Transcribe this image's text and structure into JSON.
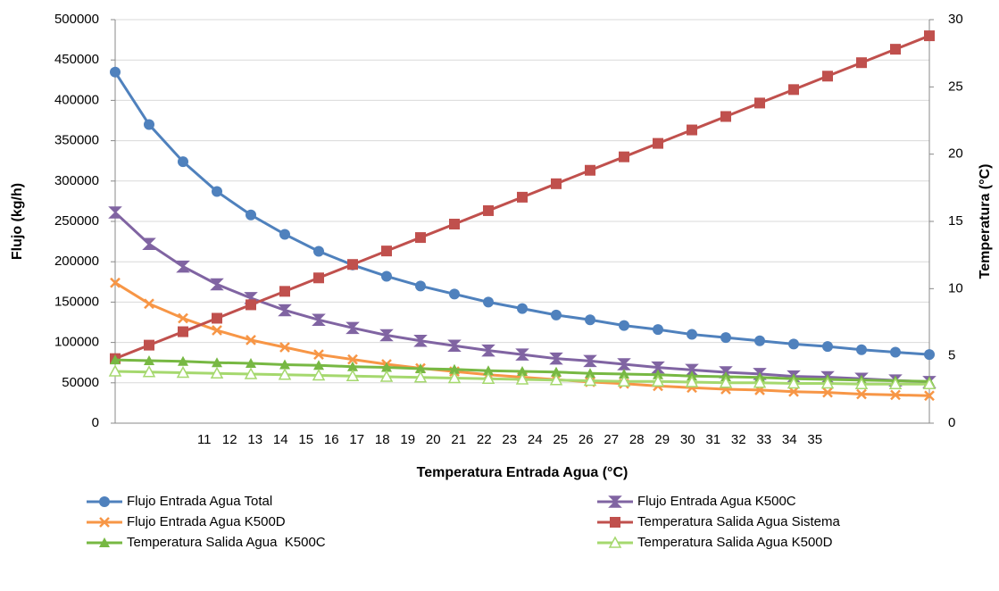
{
  "chart_data": {
    "type": "line",
    "xlabel": "Temperatura Entrada Agua (°C)",
    "ylabel": "Flujo (kg/h)",
    "y2label": "Temperatura (°C)",
    "categories": [
      "11",
      "12",
      "13",
      "14",
      "15",
      "16",
      "17",
      "18",
      "19",
      "20",
      "21",
      "22",
      "23",
      "24",
      "25",
      "26",
      "27",
      "28",
      "29",
      "30",
      "31",
      "32",
      "33",
      "34",
      "35"
    ],
    "ylim": [
      0,
      500000
    ],
    "yticks": [
      0,
      50000,
      100000,
      150000,
      200000,
      250000,
      300000,
      350000,
      400000,
      450000,
      500000
    ],
    "y2lim": [
      0,
      30
    ],
    "y2ticks": [
      0,
      5,
      10,
      15,
      20,
      25,
      30
    ],
    "grid": true,
    "legend": "bottom",
    "series": [
      {
        "name": "Flujo Entrada Agua Total",
        "color": "#4f81bd",
        "marker": "circle",
        "values": [
          435000,
          370000,
          324000,
          287000,
          258000,
          234000,
          213000,
          196000,
          182000,
          170000,
          160000,
          150000,
          142000,
          134000,
          128000,
          121000,
          116000,
          110000,
          106000,
          102000,
          98000,
          95000,
          91000,
          88000,
          85000
        ]
      },
      {
        "name": "Flujo Entrada Agua K500C",
        "color": "#8064a2",
        "marker": "hourglass",
        "values": [
          261000,
          222000,
          194000,
          172000,
          155000,
          140000,
          128000,
          118000,
          109000,
          102000,
          96000,
          90000,
          85000,
          80000,
          77000,
          73000,
          69000,
          66000,
          63000,
          61000,
          58000,
          57000,
          55000,
          53000,
          51000
        ]
      },
      {
        "name": "Flujo Entrada Agua K500D",
        "color": "#f79646",
        "marker": "cross",
        "values": [
          174000,
          148000,
          130000,
          115000,
          103000,
          94000,
          85000,
          79000,
          73000,
          68000,
          64000,
          60000,
          57000,
          54000,
          51000,
          49000,
          46000,
          44000,
          42000,
          41000,
          39000,
          38000,
          36000,
          35000,
          34000
        ]
      },
      {
        "name": "Temperatura Salida Agua Sistema",
        "color": "#c0504d",
        "marker": "square",
        "axis": "y2",
        "values": [
          4.8,
          5.8,
          6.8,
          7.8,
          8.8,
          9.8,
          10.8,
          11.8,
          12.8,
          13.8,
          14.8,
          15.8,
          16.8,
          17.8,
          18.8,
          19.8,
          20.8,
          21.8,
          22.8,
          23.8,
          24.8,
          25.8,
          26.8,
          27.8,
          28.8
        ]
      },
      {
        "name": "Temperatura Salida Agua  K500C",
        "color": "#77b843",
        "marker": "triangle",
        "axis": "y2",
        "values": [
          4.7,
          4.65,
          4.6,
          4.5,
          4.45,
          4.35,
          4.3,
          4.2,
          4.15,
          4.05,
          4.0,
          3.9,
          3.85,
          3.8,
          3.7,
          3.65,
          3.6,
          3.5,
          3.45,
          3.4,
          3.3,
          3.25,
          3.2,
          3.15,
          3.1
        ]
      },
      {
        "name": "Temperatura Salida Agua K500D",
        "color": "#a5d86e",
        "marker": "triangle-open",
        "axis": "y2",
        "values": [
          3.85,
          3.8,
          3.75,
          3.7,
          3.65,
          3.6,
          3.55,
          3.5,
          3.45,
          3.4,
          3.35,
          3.3,
          3.25,
          3.2,
          3.15,
          3.1,
          3.1,
          3.05,
          3.0,
          3.0,
          2.95,
          2.95,
          2.9,
          2.9,
          2.9
        ]
      }
    ]
  }
}
